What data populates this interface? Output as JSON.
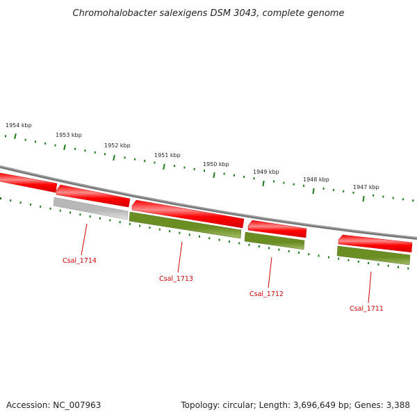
{
  "title": "Chromohalobacter salexigens DSM 3043, complete genome",
  "footer": {
    "accession": "Accession: NC_007963",
    "summary": "Topology: circular; Length: 3,696,649 bp; Genes: 3,388"
  },
  "colors": {
    "forward_gene": "#ff0000",
    "forward_gene_light": "#ff8a8a",
    "reverse_gene": "#6b8e23",
    "reverse_gene_light": "#a4bd68",
    "pseudo_gene": "#b8b8b8",
    "pseudo_gene_light": "#e4e4e4",
    "backbone": "#808080",
    "tick": "#1a7a1a",
    "label": "#cc0000"
  },
  "kbp_labels": [
    "1954 kbp",
    "1953 kbp",
    "1952 kbp",
    "1951 kbp",
    "1950 kbp",
    "1949 kbp",
    "1948 kbp",
    "1947 kbp"
  ],
  "gene_labels": [
    "Csal_1714",
    "Csal_1713",
    "Csal_1712",
    "Csal_1711"
  ]
}
